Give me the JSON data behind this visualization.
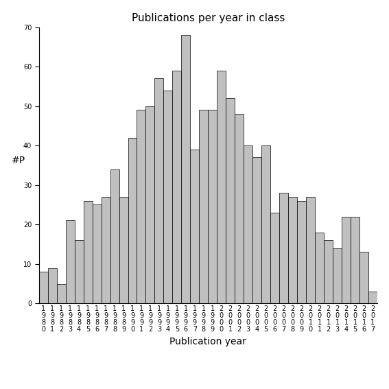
{
  "title": "Publications per year in class",
  "xlabel": "Publication year",
  "ylabel": "#P",
  "years": [
    "1980",
    "1981",
    "1982",
    "1983",
    "1984",
    "1985",
    "1986",
    "1987",
    "1988",
    "1989",
    "1990",
    "1991",
    "1992",
    "1993",
    "1994",
    "1995",
    "1996",
    "1997",
    "1998",
    "1999",
    "2000",
    "2001",
    "2002",
    "2003",
    "2004",
    "2005",
    "2006",
    "2007",
    "2008",
    "2009",
    "2010",
    "2011",
    "2012",
    "2013",
    "2014",
    "2015",
    "2016",
    "2017"
  ],
  "values": [
    8,
    9,
    5,
    21,
    16,
    26,
    25,
    27,
    34,
    27,
    42,
    49,
    50,
    57,
    54,
    59,
    68,
    39,
    49,
    49,
    59,
    52,
    48,
    40,
    37,
    40,
    23,
    28,
    27,
    26,
    27,
    18,
    16,
    14,
    22,
    22,
    13,
    3
  ],
  "bar_color": "#c0c0c0",
  "bar_edge_color": "#000000",
  "bar_edge_width": 0.5,
  "ylim": [
    0,
    70
  ],
  "yticks": [
    0,
    10,
    20,
    30,
    40,
    50,
    60,
    70
  ],
  "background_color": "#ffffff",
  "tick_label_fontsize": 7,
  "axis_label_fontsize": 10,
  "title_fontsize": 11
}
